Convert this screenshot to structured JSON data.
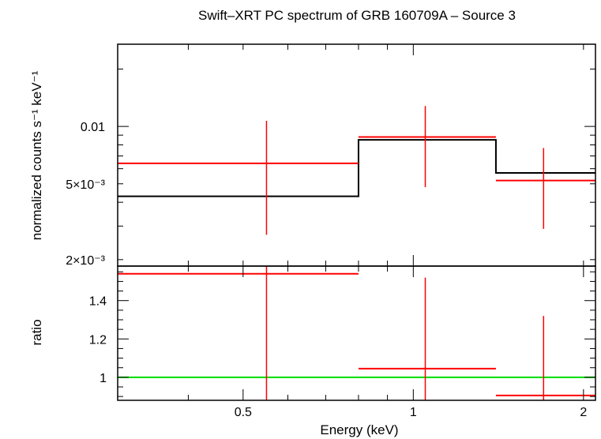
{
  "chart_data": [
    {
      "type": "line",
      "panel": "spectrum",
      "title": "Swift–XRT PC spectrum of GRB 160709A – Source 3",
      "ylabel": "normalized counts s⁻¹ keV⁻¹",
      "xscale": "log",
      "yscale": "log",
      "xlim": [
        0.3,
        2.1
      ],
      "ylim": [
        0.00185,
        0.027
      ],
      "y_tick_labels": [
        {
          "value": 0.01,
          "label": "0.01"
        },
        {
          "value": 0.005,
          "label": "5×10⁻³"
        },
        {
          "value": 0.002,
          "label": "2×10⁻³"
        }
      ],
      "series": [
        {
          "kind": "data",
          "color": "#ff0000",
          "points": [
            {
              "x": 0.55,
              "xlo": 0.3,
              "xhi": 0.8,
              "y": 0.0064,
              "ylo": 0.0027,
              "yhi": 0.0107
            },
            {
              "x": 1.05,
              "xlo": 0.8,
              "xhi": 1.4,
              "y": 0.0088,
              "ylo": 0.0048,
              "yhi": 0.0128
            },
            {
              "x": 1.7,
              "xlo": 1.4,
              "xhi": 2.1,
              "y": 0.0052,
              "ylo": 0.0029,
              "yhi": 0.0077
            }
          ]
        },
        {
          "kind": "model",
          "color": "#000000",
          "bins": [
            {
              "xlo": 0.3,
              "xhi": 0.8,
              "y": 0.0043
            },
            {
              "xlo": 0.8,
              "xhi": 1.4,
              "y": 0.0085
            },
            {
              "xlo": 1.4,
              "xhi": 2.1,
              "y": 0.0057
            }
          ]
        }
      ]
    },
    {
      "type": "line",
      "panel": "ratio",
      "xlabel": "Energy (keV)",
      "ylabel": "ratio",
      "xscale": "log",
      "xlim": [
        0.3,
        2.1
      ],
      "ylim": [
        0.88,
        1.58
      ],
      "x_tick_labels": [
        {
          "value": 0.5,
          "label": "0.5"
        },
        {
          "value": 1,
          "label": "1"
        },
        {
          "value": 2,
          "label": "2"
        }
      ],
      "y_tick_labels": [
        {
          "value": 1,
          "label": "1"
        },
        {
          "value": 1.2,
          "label": "1.2"
        },
        {
          "value": 1.4,
          "label": "1.4"
        }
      ],
      "series": [
        {
          "kind": "data",
          "color": "#ff0000",
          "points": [
            {
              "x": 0.55,
              "xlo": 0.3,
              "xhi": 0.8,
              "y": 1.54,
              "ylo": 0.88,
              "yhi": 1.6
            },
            {
              "x": 1.05,
              "xlo": 0.8,
              "xhi": 1.4,
              "y": 1.045,
              "ylo": 0.88,
              "yhi": 1.52
            },
            {
              "x": 1.7,
              "xlo": 1.4,
              "xhi": 2.1,
              "y": 0.905,
              "ylo": 0.88,
              "yhi": 1.32
            }
          ]
        },
        {
          "kind": "reference",
          "color": "#00dd00",
          "y": 1
        }
      ]
    }
  ]
}
